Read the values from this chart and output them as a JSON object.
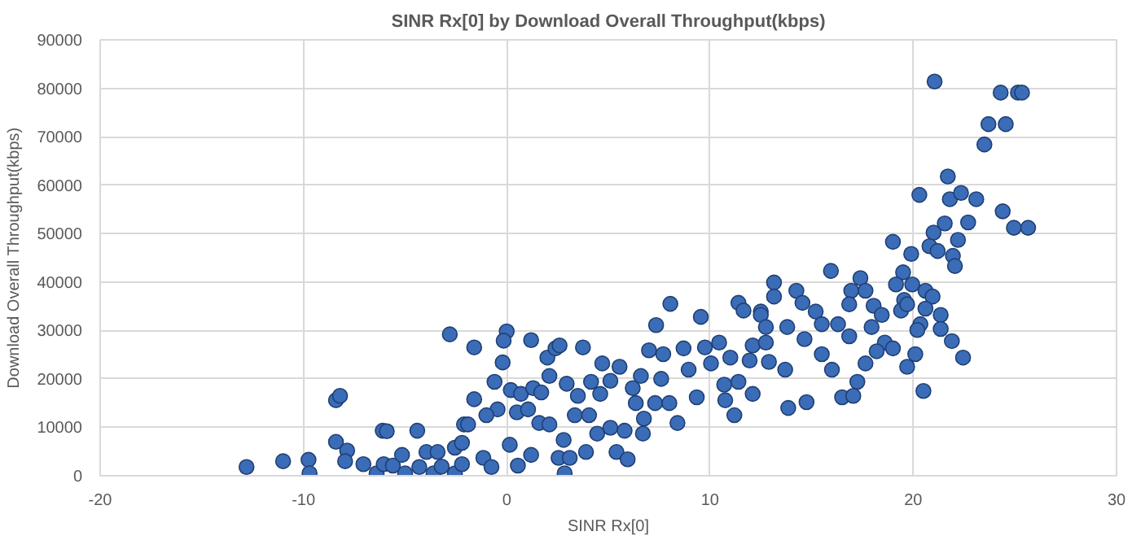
{
  "chart_data": {
    "type": "scatter",
    "title": "SINR Rx[0] by Download Overall Throughput(kbps)",
    "xlabel": "SINR Rx[0]",
    "ylabel": "Download Overall Throughput(kbps)",
    "xlim": [
      -20,
      30
    ],
    "xticks": [
      -20,
      -10,
      0,
      10,
      20,
      30
    ],
    "ylim": [
      0,
      90000
    ],
    "yticks": [
      0,
      10000,
      20000,
      30000,
      40000,
      50000,
      60000,
      70000,
      80000,
      90000
    ],
    "grid": true,
    "marker": "circle",
    "series": [
      {
        "color": "#3b6cb7",
        "x": [
          -12.8,
          -11.0,
          -9.75,
          -9.7,
          -8.4,
          -8.2,
          -8.4,
          -7.85,
          -7.95,
          -7.05,
          -6.4,
          -6.1,
          -5.9,
          -6.05,
          -5.6,
          -5.15,
          -5.0,
          -4.4,
          -4.3,
          -3.95,
          -3.4,
          -3.6,
          -3.2,
          -2.8,
          -2.55,
          -2.55,
          -2.1,
          -1.6,
          0.0,
          -0.15,
          -0.2,
          1.2,
          -0.6,
          -1.6,
          -1.9,
          -2.2,
          -2.2,
          -1.15,
          -0.75,
          0.15,
          0.55,
          1.2,
          0.2,
          0.7,
          1.3,
          1.7,
          -0.45,
          -1.0,
          0.5,
          1.05,
          1.6,
          2.1,
          2.1,
          2.0,
          2.4,
          2.6,
          3.75,
          2.95,
          3.5,
          3.35,
          2.8,
          2.55,
          3.1,
          2.85,
          3.9,
          4.15,
          4.7,
          5.55,
          5.1,
          4.6,
          4.05,
          4.45,
          5.4,
          5.95,
          5.1,
          5.8,
          6.2,
          6.6,
          6.35,
          6.75,
          6.7,
          7.0,
          7.35,
          8.05,
          7.7,
          7.6,
          7.3,
          8.0,
          8.4,
          8.7,
          8.95,
          9.35,
          9.55,
          9.75,
          10.45,
          10.05,
          11.0,
          10.7,
          11.4,
          10.75,
          11.2,
          12.1,
          11.4,
          11.65,
          12.5,
          13.15,
          13.15,
          12.1,
          12.75,
          11.95,
          12.9,
          14.25,
          14.55,
          12.5,
          12.75,
          13.8,
          14.65,
          15.2,
          15.95,
          15.5,
          16.3,
          16.85,
          15.5,
          16.0,
          13.7,
          13.85,
          14.75,
          16.5,
          17.05,
          17.25,
          17.65,
          17.95,
          17.4,
          16.95,
          17.65,
          16.85,
          18.05,
          18.45,
          18.6,
          18.2,
          19.0,
          19.0,
          19.9,
          19.5,
          19.15,
          19.95,
          19.55,
          19.4,
          19.7,
          20.6,
          20.95,
          20.6,
          20.35,
          20.2,
          21.35,
          21.35,
          21.9,
          22.45,
          20.1,
          19.7,
          20.5,
          20.3,
          21.7,
          21.8,
          22.35,
          23.1,
          21.55,
          21.0,
          22.7,
          22.2,
          20.8,
          21.2,
          21.95,
          22.05,
          24.4,
          24.95,
          25.65,
          23.5,
          21.05,
          24.3,
          25.15,
          25.35,
          23.7,
          24.55
        ],
        "values": [
          1800,
          3000,
          3300,
          500,
          15600,
          16500,
          7000,
          5200,
          3000,
          2400,
          500,
          9300,
          9200,
          2400,
          2100,
          4300,
          500,
          9300,
          1800,
          4900,
          4900,
          500,
          1900,
          29200,
          5800,
          500,
          10600,
          26500,
          29800,
          27900,
          23400,
          28000,
          19400,
          15800,
          10600,
          6800,
          2400,
          3700,
          1800,
          6400,
          2100,
          4300,
          17700,
          16900,
          18100,
          17200,
          13700,
          12500,
          13100,
          13700,
          10900,
          10600,
          20600,
          24400,
          26300,
          26900,
          26500,
          19000,
          16500,
          12500,
          7400,
          3700,
          3700,
          500,
          4900,
          19400,
          23200,
          22500,
          19600,
          16900,
          12500,
          8700,
          4900,
          3400,
          9900,
          9300,
          18100,
          20600,
          15000,
          11800,
          8700,
          25900,
          31100,
          35500,
          25100,
          20000,
          15000,
          15000,
          10900,
          26300,
          21900,
          16200,
          32800,
          26500,
          27500,
          23200,
          24400,
          18800,
          19400,
          15600,
          12500,
          16900,
          35700,
          34100,
          33900,
          39900,
          37000,
          26900,
          27500,
          23800,
          23500,
          38200,
          35700,
          33200,
          30700,
          30700,
          28200,
          33900,
          42300,
          31300,
          31300,
          28800,
          25100,
          21900,
          21900,
          14000,
          15200,
          16200,
          16500,
          19400,
          23200,
          30700,
          40800,
          38200,
          38200,
          35400,
          35100,
          33200,
          27500,
          25700,
          26300,
          48300,
          45800,
          42000,
          39500,
          39500,
          36300,
          34100,
          35400,
          38200,
          37000,
          34500,
          31300,
          30100,
          33200,
          30300,
          27800,
          24400,
          25100,
          22500,
          17500,
          58000,
          61800,
          57100,
          58400,
          57100,
          52100,
          50200,
          52300,
          48700,
          47400,
          46400,
          45400,
          43300,
          54600,
          51200,
          51200,
          68400,
          81400,
          79100,
          79100,
          79100,
          72600,
          72600
        ]
      }
    ]
  }
}
